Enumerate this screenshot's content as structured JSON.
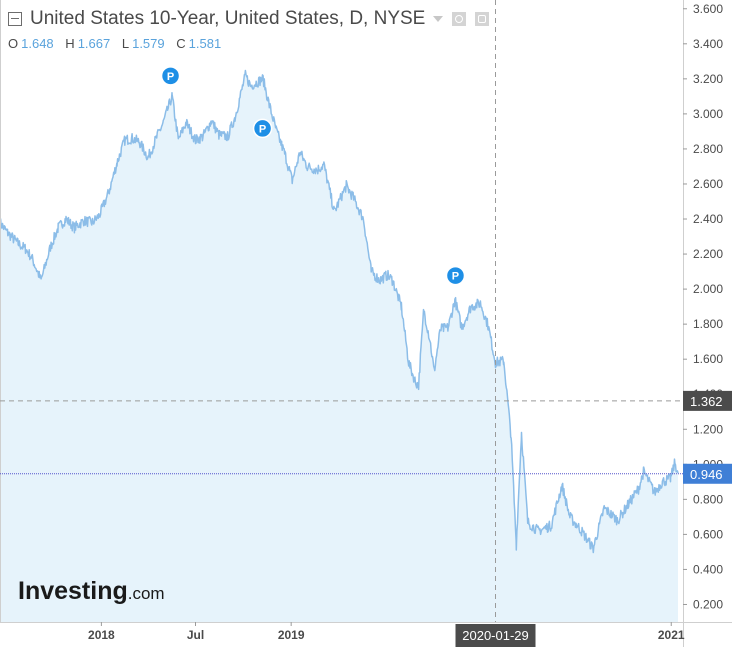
{
  "legend": {
    "title": "United States 10-Year, United States, D, NYSE",
    "ohlc": [
      {
        "key": "O",
        "value": "1.648"
      },
      {
        "key": "H",
        "value": "1.667"
      },
      {
        "key": "L",
        "value": "1.579"
      },
      {
        "key": "C",
        "value": "1.581"
      }
    ]
  },
  "branding": {
    "logo_main": "Investing",
    "logo_suffix": ".com"
  },
  "crosshair": {
    "date_label": "2020-01-29",
    "price_label": "1.362",
    "price": 1.362
  },
  "last_price": {
    "label": "0.946",
    "value": 0.946
  },
  "colors": {
    "line": "#8cbde8",
    "fill": "#e6f3fb",
    "crosshair": "#9a9a9a",
    "last_price_line": "#5555cc",
    "last_price_badge": "#3f7fd6",
    "crosshair_badge": "#4b4b4b",
    "marker": "#1e8fe6",
    "axis_text": "#4a4a4a"
  },
  "chart_data": {
    "type": "area",
    "title": "United States 10-Year, United States, D, NYSE",
    "xlabel": "",
    "ylabel": "",
    "ylim": [
      0.1,
      3.65
    ],
    "xlim": [
      "2017-06-20",
      "2021-01-14"
    ],
    "y_ticks": [
      "0.200",
      "0.400",
      "0.600",
      "0.800",
      "1.000",
      "1.200",
      "1.400",
      "1.600",
      "1.800",
      "2.000",
      "2.200",
      "2.400",
      "2.600",
      "2.800",
      "3.000",
      "3.200",
      "3.400",
      "3.600"
    ],
    "x_ticks": [
      {
        "label": "2018",
        "date": "2018-01-01"
      },
      {
        "label": "Jul",
        "date": "2018-07-01"
      },
      {
        "label": "2019",
        "date": "2019-01-01"
      },
      {
        "label": "2021",
        "date": "2021-01-01"
      }
    ],
    "grid": false,
    "markers": [
      {
        "label": "P",
        "date": "2018-05-14",
        "value": 3.08
      },
      {
        "label": "P",
        "date": "2018-11-07",
        "value": 2.78
      },
      {
        "label": "P",
        "date": "2019-11-13",
        "value": 1.94
      }
    ],
    "series": [
      {
        "x": [
          "2017-06-20",
          "2017-07-05",
          "2017-07-25",
          "2017-08-08",
          "2017-08-20",
          "2017-09-07",
          "2017-09-25",
          "2017-10-10",
          "2017-10-25",
          "2017-11-10",
          "2017-11-28",
          "2017-12-15",
          "2017-12-28",
          "2018-01-15",
          "2018-01-31",
          "2018-02-15",
          "2018-03-01",
          "2018-03-15",
          "2018-04-01",
          "2018-04-15",
          "2018-04-30",
          "2018-05-17",
          "2018-05-29",
          "2018-06-13",
          "2018-07-01",
          "2018-07-15",
          "2018-08-01",
          "2018-08-15",
          "2018-09-01",
          "2018-09-15",
          "2018-10-05",
          "2018-10-15",
          "2018-11-08",
          "2018-11-20",
          "2018-12-04",
          "2018-12-20",
          "2019-01-03",
          "2019-01-18",
          "2019-02-01",
          "2019-02-20",
          "2019-03-05",
          "2019-03-25",
          "2019-04-17",
          "2019-05-01",
          "2019-05-20",
          "2019-06-04",
          "2019-06-20",
          "2019-07-05",
          "2019-07-15",
          "2019-08-01",
          "2019-08-15",
          "2019-08-28",
          "2019-09-03",
          "2019-09-13",
          "2019-09-25",
          "2019-10-03",
          "2019-10-15",
          "2019-10-30",
          "2019-11-12",
          "2019-11-25",
          "2019-12-13",
          "2019-12-31",
          "2020-01-15",
          "2020-01-29",
          "2020-02-14",
          "2020-02-28",
          "2020-03-09",
          "2020-03-19",
          "2020-03-31",
          "2020-04-20",
          "2020-05-15",
          "2020-06-05",
          "2020-06-20",
          "2020-07-10",
          "2020-08-04",
          "2020-08-25",
          "2020-09-20",
          "2020-10-10",
          "2020-10-30",
          "2020-11-09",
          "2020-11-30",
          "2020-12-15",
          "2020-12-31",
          "2021-01-08",
          "2021-01-14"
        ],
        "y": [
          2.38,
          2.32,
          2.26,
          2.23,
          2.18,
          2.05,
          2.24,
          2.35,
          2.4,
          2.35,
          2.39,
          2.38,
          2.42,
          2.55,
          2.72,
          2.85,
          2.86,
          2.84,
          2.75,
          2.85,
          2.95,
          3.1,
          2.85,
          2.95,
          2.85,
          2.87,
          2.96,
          2.88,
          2.87,
          2.98,
          3.22,
          3.16,
          3.2,
          3.05,
          2.9,
          2.77,
          2.62,
          2.78,
          2.7,
          2.68,
          2.71,
          2.44,
          2.59,
          2.52,
          2.4,
          2.1,
          2.05,
          2.08,
          2.05,
          1.9,
          1.58,
          1.47,
          1.45,
          1.88,
          1.71,
          1.53,
          1.77,
          1.78,
          1.94,
          1.78,
          1.9,
          1.92,
          1.79,
          1.58,
          1.59,
          1.16,
          0.54,
          1.18,
          0.67,
          0.62,
          0.65,
          0.88,
          0.7,
          0.63,
          0.52,
          0.75,
          0.68,
          0.77,
          0.86,
          0.96,
          0.84,
          0.9,
          0.92,
          1.01,
          0.95
        ]
      }
    ]
  }
}
